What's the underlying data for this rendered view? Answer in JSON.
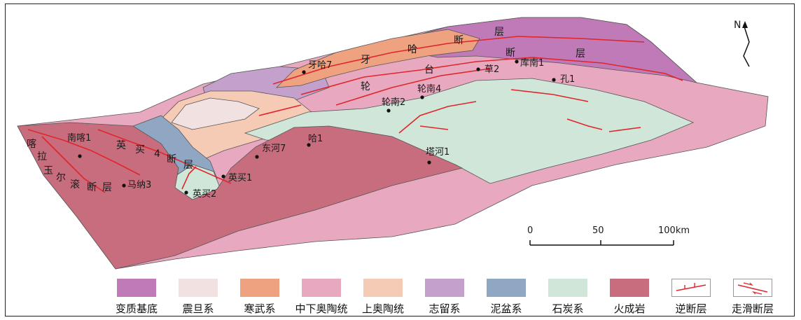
{
  "north": {
    "label": "N"
  },
  "scale": {
    "ticks": [
      "0",
      "50",
      "100km"
    ]
  },
  "map_labels": {
    "yaha_fault": [
      "牙",
      "哈",
      "断",
      "层"
    ],
    "lunnan_fault": [
      "轮",
      "台",
      "断",
      "层"
    ],
    "yingmai_fault": [
      "英",
      "买",
      "4",
      "断",
      "层"
    ],
    "kela_fault": [
      "喀",
      "拉"
    ],
    "yuerkun_fault": [
      "玉",
      "尔",
      "滚",
      "断",
      "层"
    ]
  },
  "wells": [
    {
      "name": "牙哈7"
    },
    {
      "name": "草2"
    },
    {
      "name": "库南1"
    },
    {
      "name": "孔1"
    },
    {
      "name": "轮南4"
    },
    {
      "name": "轮南2"
    },
    {
      "name": "南喀1"
    },
    {
      "name": "东河7"
    },
    {
      "name": "哈1"
    },
    {
      "name": "塔河1"
    },
    {
      "name": "英买1"
    },
    {
      "name": "英买2"
    },
    {
      "name": "马纳3"
    }
  ],
  "legend": [
    {
      "label": "变质基底",
      "color": "#c07ab8"
    },
    {
      "label": "震旦系",
      "color": "#f2e1e1"
    },
    {
      "label": "寒武系",
      "color": "#eea27f"
    },
    {
      "label": "中下奥陶统",
      "color": "#e8a9c0"
    },
    {
      "label": "上奥陶统",
      "color": "#f6cbb6"
    },
    {
      "label": "志留系",
      "color": "#c4a1cc"
    },
    {
      "label": "泥盆系",
      "color": "#8fa7c3"
    },
    {
      "label": "石炭系",
      "color": "#cfe6d8"
    },
    {
      "label": "火成岩",
      "color": "#c86d7e"
    },
    {
      "label": "逆断层",
      "color": "#ffffff"
    },
    {
      "label": "走滑断层",
      "color": "#ffffff"
    }
  ]
}
